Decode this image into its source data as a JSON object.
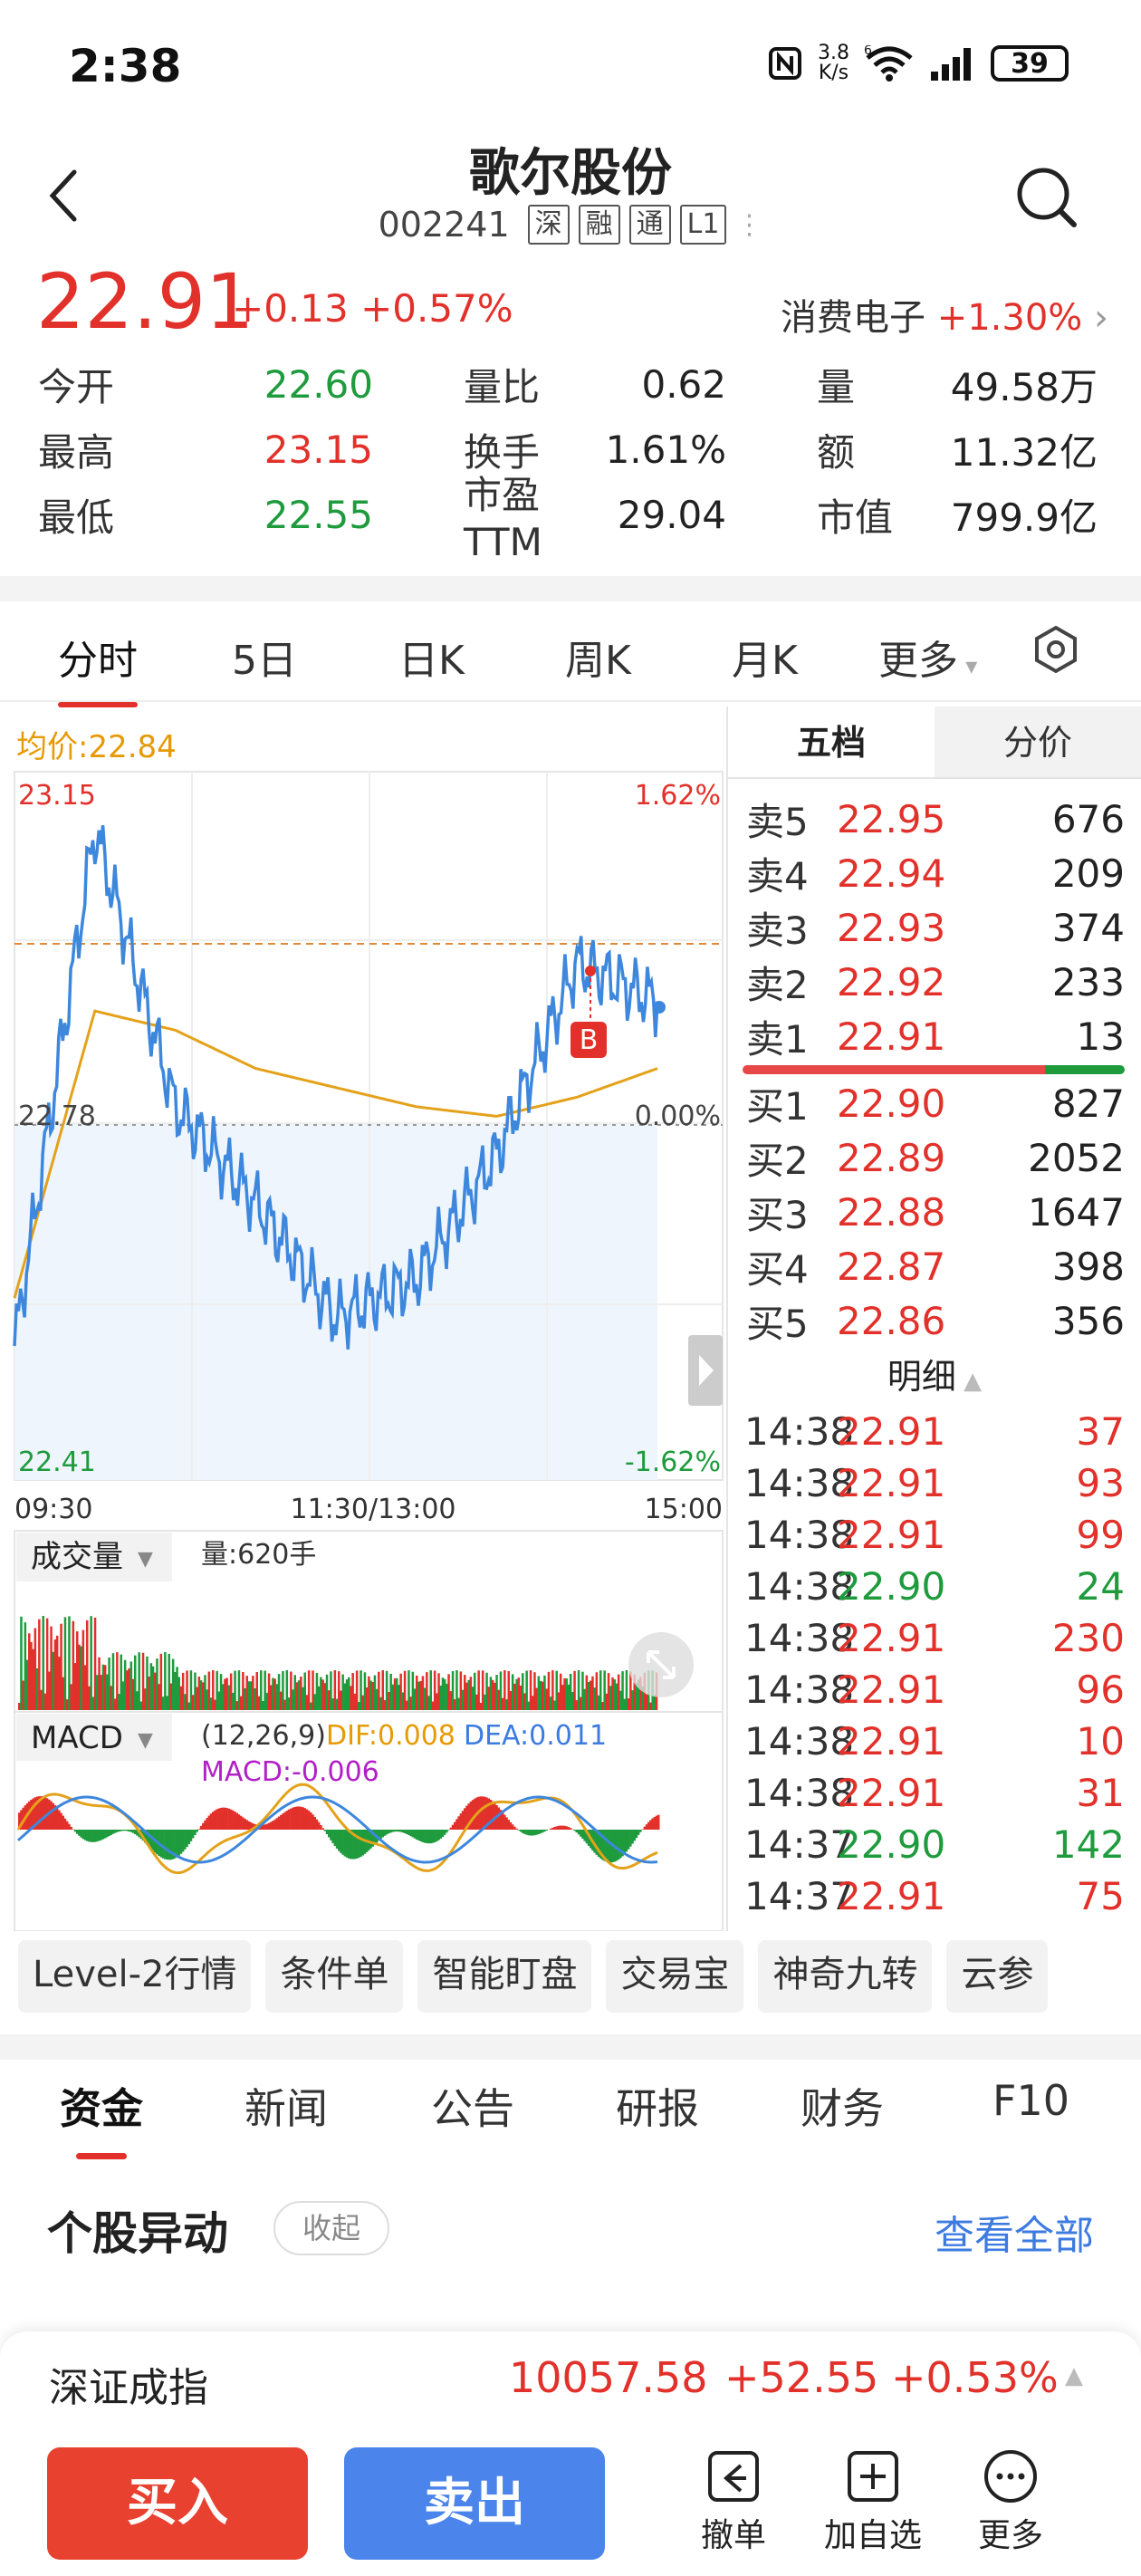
{
  "status": {
    "time": "2:38",
    "net_speed": "3.8\nK/s",
    "net_speed_top": "3.8",
    "net_speed_bot": "K/s",
    "battery": "39",
    "wifi_badge": "6"
  },
  "header": {
    "title": "歌尔股份",
    "code": "002241",
    "tags": [
      "深",
      "融",
      "通",
      "L1"
    ]
  },
  "quote": {
    "price": "22.91",
    "change": "+0.13",
    "change_pct": "+0.57%",
    "sector": "消费电子",
    "sector_pct": "+1.30%"
  },
  "stats": [
    {
      "k1": "今开",
      "v1": "22.60",
      "c1": "green",
      "k2": "量比",
      "v2": "0.62",
      "k3": "量",
      "v3": "49.58万"
    },
    {
      "k1": "最高",
      "v1": "23.15",
      "c1": "red",
      "k2": "换手",
      "v2": "1.61%",
      "k3": "额",
      "v3": "11.32亿"
    },
    {
      "k1": "最低",
      "v1": "22.55",
      "c1": "green",
      "k2": "市盈TTM",
      "v2": "29.04",
      "k3": "市值",
      "v3": "799.9亿"
    }
  ],
  "tabs": [
    "分时",
    "5日",
    "日K",
    "周K",
    "月K",
    "更多"
  ],
  "chart": {
    "avg_label": "均价:22.84",
    "y_top": "23.15",
    "y_mid": "22.78",
    "y_bot": "22.41",
    "pct_top": "1.62%",
    "pct_mid": "0.00%",
    "pct_bot": "-1.62%",
    "x_labels": [
      "09:30",
      "11:30/13:00",
      "15:00"
    ],
    "marker": "B",
    "vol_selector": "成交量",
    "vol_label": "量:620手",
    "macd_selector": "MACD",
    "macd_params": "(12,26,9)",
    "dif": "DIF:0.008",
    "dea": "DEA:0.011",
    "macd": "MACD:-0.006"
  },
  "chart_data": {
    "type": "line",
    "title": "",
    "x": [
      "09:30",
      "10:00",
      "10:30",
      "11:00",
      "11:30/13:00",
      "13:30",
      "14:00",
      "14:30",
      "14:38"
    ],
    "series": [
      {
        "values": [
          22.55,
          23.09,
          22.8,
          22.7,
          22.58,
          22.62,
          22.75,
          22.95,
          22.91
        ]
      },
      {
        "values": [
          22.6,
          22.9,
          22.88,
          22.84,
          22.82,
          22.8,
          22.79,
          22.81,
          22.84
        ]
      }
    ],
    "ylim": [
      22.41,
      23.15
    ],
    "xlabel": "",
    "ylabel": ""
  },
  "book": {
    "tabs": [
      "五档",
      "分价"
    ],
    "asks": [
      {
        "label": "卖5",
        "price": "22.95",
        "qty": "676"
      },
      {
        "label": "卖4",
        "price": "22.94",
        "qty": "209"
      },
      {
        "label": "卖3",
        "price": "22.93",
        "qty": "374"
      },
      {
        "label": "卖2",
        "price": "22.92",
        "qty": "233"
      },
      {
        "label": "卖1",
        "price": "22.91",
        "qty": "13"
      }
    ],
    "bids": [
      {
        "label": "买1",
        "price": "22.90",
        "qty": "827"
      },
      {
        "label": "买2",
        "price": "22.89",
        "qty": "2052"
      },
      {
        "label": "买3",
        "price": "22.88",
        "qty": "1647"
      },
      {
        "label": "买4",
        "price": "22.87",
        "qty": "398"
      },
      {
        "label": "买5",
        "price": "22.86",
        "qty": "356"
      }
    ],
    "detail_title": "明细",
    "trades": [
      {
        "t": "14:38",
        "p": "22.91",
        "q": "37",
        "c": "red"
      },
      {
        "t": "14:38",
        "p": "22.91",
        "q": "93",
        "c": "red"
      },
      {
        "t": "14:38",
        "p": "22.91",
        "q": "99",
        "c": "red"
      },
      {
        "t": "14:38",
        "p": "22.90",
        "q": "24",
        "c": "green"
      },
      {
        "t": "14:38",
        "p": "22.91",
        "q": "230",
        "c": "red"
      },
      {
        "t": "14:38",
        "p": "22.91",
        "q": "96",
        "c": "red"
      },
      {
        "t": "14:38",
        "p": "22.91",
        "q": "10",
        "c": "red"
      },
      {
        "t": "14:38",
        "p": "22.91",
        "q": "31",
        "c": "red"
      },
      {
        "t": "14:37",
        "p": "22.90",
        "q": "142",
        "c": "green"
      },
      {
        "t": "14:37",
        "p": "22.91",
        "q": "75",
        "c": "red"
      }
    ]
  },
  "chips": [
    "Level-2行情",
    "条件单",
    "智能盯盘",
    "交易宝",
    "神奇九转",
    "云参"
  ],
  "news_tabs": [
    "资金",
    "新闻",
    "公告",
    "研报",
    "财务",
    "F10"
  ],
  "section": {
    "title": "个股异动",
    "collapse": "收起",
    "view_all": "查看全部"
  },
  "index": {
    "name": "深证成指",
    "value": "10057.58",
    "change": "+52.55",
    "pct": "+0.53%"
  },
  "bottom": {
    "buy": "买入",
    "sell": "卖出",
    "cancel": "撤单",
    "watch": "加自选",
    "more": "更多"
  }
}
